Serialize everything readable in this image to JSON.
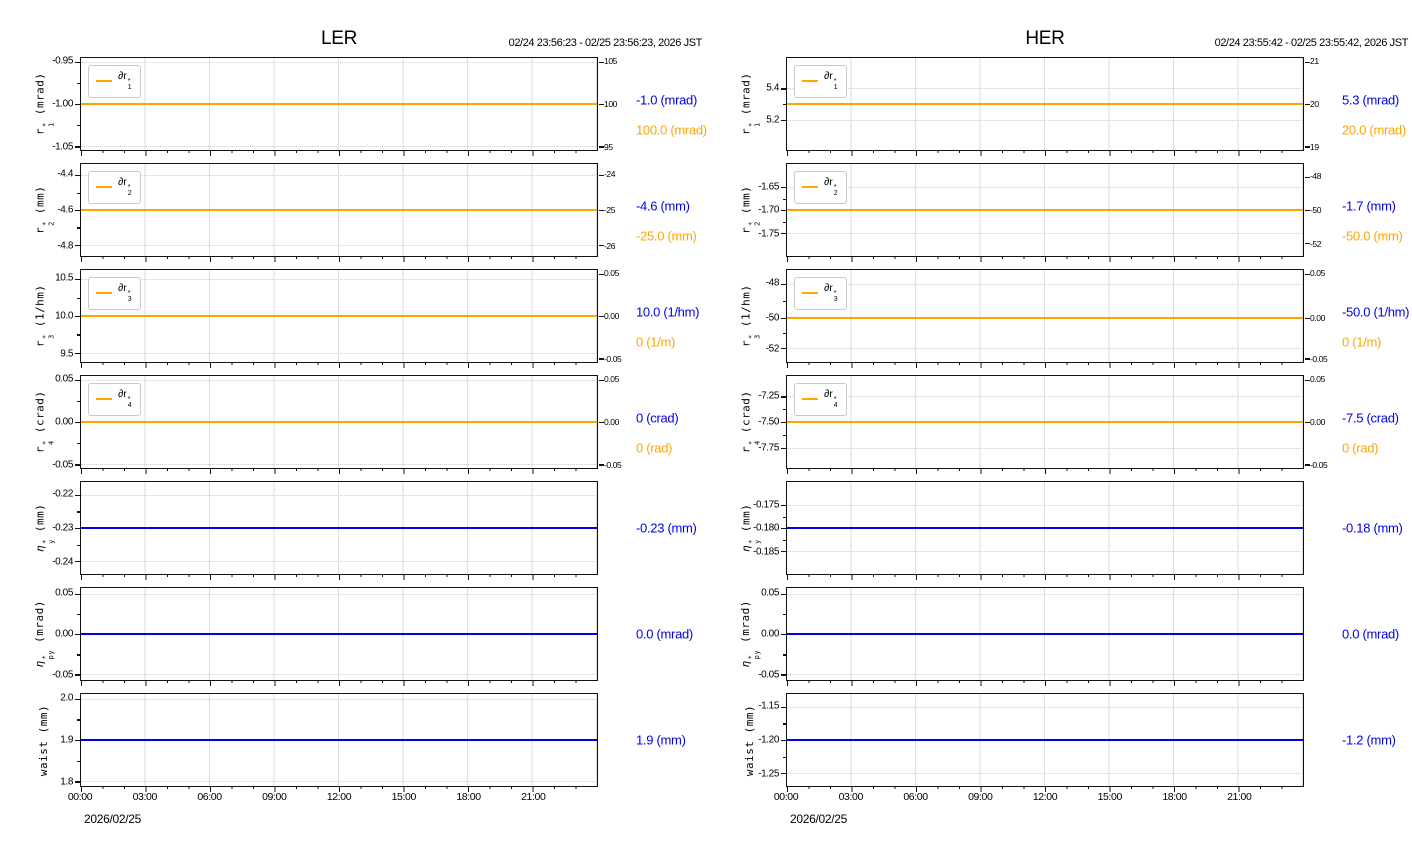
{
  "colors": {
    "blue": "#0000EE",
    "orange": "#FFA500",
    "grid_vertical": "#dedede",
    "grid_horizontal": "#cfcfcf",
    "frame": "#111111"
  },
  "chart_data": [
    {
      "type": "line",
      "title": "LER",
      "time_range": "02/24 23:56:23 - 02/25 23:56:23, 2026 JST",
      "x_axis": {
        "date": "2026/02/25",
        "tick_labels": [
          "00:00",
          "03:00",
          "06:00",
          "09:00",
          "12:00",
          "15:00",
          "18:00",
          "21:00"
        ],
        "span_hours": 24,
        "major_tick_hours": 3,
        "minor_tick_hours": 1,
        "grid": "vertical dotted lines at major ticks"
      },
      "subplots": [
        {
          "ylabel": {
            "sym": "r",
            "sub": "1",
            "sup": "*",
            "unit": "(mrad)",
            "italic": false
          },
          "left_ticks": [
            {
              "label": "-0.95",
              "pos": 4
            },
            {
              "label": "-1.00",
              "pos": 50
            },
            {
              "label": "-1.05",
              "pos": 96
            }
          ],
          "right_ticks": [
            {
              "label": "105",
              "pos": 4
            },
            {
              "label": "100",
              "pos": 50
            },
            {
              "label": "95",
              "pos": 96
            }
          ],
          "legend": {
            "sym": "∂r",
            "sub": "1",
            "sup": "*"
          },
          "line": {
            "color": "orange",
            "pos": 50
          },
          "series": [
            {
              "name": "r1*",
              "axis": "left",
              "constant_value": -1.0,
              "unit": "mrad",
              "label": "-1.0 (mrad)",
              "color": "blue"
            },
            {
              "name": "∂r1*",
              "axis": "right",
              "constant_value": 100.0,
              "unit": "mrad",
              "label": "100.0 (mrad)",
              "color": "orange"
            }
          ]
        },
        {
          "ylabel": {
            "sym": "r",
            "sub": "2",
            "sup": "*",
            "unit": "(mm)",
            "italic": false
          },
          "left_ticks": [
            {
              "label": "-4.4",
              "pos": 12
            },
            {
              "label": "-4.6",
              "pos": 50
            },
            {
              "label": "-4.8",
              "pos": 88
            }
          ],
          "right_ticks": [
            {
              "label": "-24",
              "pos": 12
            },
            {
              "label": "-25",
              "pos": 50
            },
            {
              "label": "-26",
              "pos": 88
            }
          ],
          "legend": {
            "sym": "∂r",
            "sub": "2",
            "sup": "*"
          },
          "line": {
            "color": "orange",
            "pos": 50
          },
          "series": [
            {
              "name": "r2*",
              "axis": "left",
              "constant_value": -4.6,
              "unit": "mm",
              "label": "-4.6 (mm)",
              "color": "blue"
            },
            {
              "name": "∂r2*",
              "axis": "right",
              "constant_value": -25.0,
              "unit": "mm",
              "label": "-25.0 (mm)",
              "color": "orange"
            }
          ]
        },
        {
          "ylabel": {
            "sym": "r",
            "sub": "3",
            "sup": "*",
            "unit": "(1/hm)",
            "italic": false
          },
          "left_ticks": [
            {
              "label": "10.5",
              "pos": 10
            },
            {
              "label": "10.0",
              "pos": 50
            },
            {
              "label": "9.5",
              "pos": 90
            }
          ],
          "right_ticks": [
            {
              "label": "0.05",
              "pos": 4
            },
            {
              "label": "0.00",
              "pos": 50
            },
            {
              "label": "-0.05",
              "pos": 96
            }
          ],
          "legend": {
            "sym": "∂r",
            "sub": "3",
            "sup": "*"
          },
          "line": {
            "color": "orange",
            "pos": 50
          },
          "series": [
            {
              "name": "r3*",
              "axis": "left",
              "constant_value": 10.0,
              "unit": "1/hm",
              "label": "10.0 (1/hm)",
              "color": "blue"
            },
            {
              "name": "∂r3*",
              "axis": "right",
              "constant_value": 0,
              "unit": "1/m",
              "label": "0 (1/m)",
              "color": "orange"
            }
          ]
        },
        {
          "ylabel": {
            "sym": "r",
            "sub": "4",
            "sup": "*",
            "unit": "(crad)",
            "italic": false
          },
          "left_ticks": [
            {
              "label": "0.05",
              "pos": 4
            },
            {
              "label": "0.00",
              "pos": 50
            },
            {
              "label": "-0.05",
              "pos": 96
            }
          ],
          "right_ticks": [
            {
              "label": "0.05",
              "pos": 4
            },
            {
              "label": "0.00",
              "pos": 50
            },
            {
              "label": "-0.05",
              "pos": 96
            }
          ],
          "legend": {
            "sym": "∂r",
            "sub": "4",
            "sup": "*"
          },
          "line": {
            "color": "orange",
            "pos": 50
          },
          "series": [
            {
              "name": "r4*",
              "axis": "left",
              "constant_value": 0,
              "unit": "crad",
              "label": "0 (crad)",
              "color": "blue"
            },
            {
              "name": "∂r4*",
              "axis": "right",
              "constant_value": 0,
              "unit": "rad",
              "label": "0 (rad)",
              "color": "orange"
            }
          ]
        },
        {
          "ylabel": {
            "sym": "η",
            "sub": "y",
            "sup": "*",
            "unit": "(mm)",
            "italic": true
          },
          "left_ticks": [
            {
              "label": "-0.22",
              "pos": 14
            },
            {
              "label": "-0.23",
              "pos": 50
            },
            {
              "label": "-0.24",
              "pos": 86
            }
          ],
          "line": {
            "color": "blue",
            "pos": 50
          },
          "series": [
            {
              "name": "ηy*",
              "axis": "left",
              "constant_value": -0.23,
              "unit": "mm",
              "label": "-0.23 (mm)",
              "color": "blue"
            }
          ]
        },
        {
          "ylabel": {
            "sym": "η",
            "sub": "py",
            "sup": "*",
            "unit": "(mrad)",
            "italic": true
          },
          "left_ticks": [
            {
              "label": "0.05",
              "pos": 6
            },
            {
              "label": "0.00",
              "pos": 50
            },
            {
              "label": "-0.05",
              "pos": 94
            }
          ],
          "line": {
            "color": "blue",
            "pos": 50
          },
          "series": [
            {
              "name": "ηpy*",
              "axis": "left",
              "constant_value": 0.0,
              "unit": "mrad",
              "label": "0.0 (mrad)",
              "color": "blue"
            }
          ]
        },
        {
          "ylabel": {
            "sym": "waist",
            "unit": "(mm)",
            "italic": false
          },
          "left_ticks": [
            {
              "label": "2.0",
              "pos": 5
            },
            {
              "label": "1.9",
              "pos": 50
            },
            {
              "label": "1.8",
              "pos": 95
            }
          ],
          "line": {
            "color": "blue",
            "pos": 50
          },
          "series": [
            {
              "name": "waist",
              "axis": "left",
              "constant_value": 1.9,
              "unit": "mm",
              "label": "1.9 (mm)",
              "color": "blue"
            }
          ]
        }
      ]
    },
    {
      "type": "line",
      "title": "HER",
      "time_range": "02/24 23:55:42 - 02/25 23:55:42, 2026 JST",
      "x_axis": {
        "date": "2026/02/25",
        "tick_labels": [
          "00:00",
          "03:00",
          "06:00",
          "09:00",
          "12:00",
          "15:00",
          "18:00",
          "21:00"
        ],
        "span_hours": 24,
        "major_tick_hours": 3,
        "minor_tick_hours": 1,
        "grid": "vertical dotted lines at major ticks"
      },
      "subplots": [
        {
          "ylabel": {
            "sym": "r",
            "sub": "1",
            "sup": "*",
            "unit": "(mrad)",
            "italic": false
          },
          "left_ticks": [
            {
              "label": "5.4",
              "pos": 33
            },
            {
              "label": "5.2",
              "pos": 67
            }
          ],
          "right_ticks": [
            {
              "label": "21",
              "pos": 4
            },
            {
              "label": "20",
              "pos": 50
            },
            {
              "label": "19",
              "pos": 96
            }
          ],
          "legend": {
            "sym": "∂r",
            "sub": "1",
            "sup": "*"
          },
          "line": {
            "color": "orange",
            "pos": 50
          },
          "series": [
            {
              "name": "r1*",
              "axis": "left",
              "constant_value": 5.3,
              "unit": "mrad",
              "label": "5.3 (mrad)",
              "color": "blue"
            },
            {
              "name": "∂r1*",
              "axis": "right",
              "constant_value": 20.0,
              "unit": "mrad",
              "label": "20.0 (mrad)",
              "color": "orange"
            }
          ]
        },
        {
          "ylabel": {
            "sym": "r",
            "sub": "2",
            "sup": "*",
            "unit": "(mm)",
            "italic": false
          },
          "left_ticks": [
            {
              "label": "-1.65",
              "pos": 25
            },
            {
              "label": "-1.70",
              "pos": 50
            },
            {
              "label": "-1.75",
              "pos": 75
            }
          ],
          "right_ticks": [
            {
              "label": "-48",
              "pos": 14
            },
            {
              "label": "-50",
              "pos": 50
            },
            {
              "label": "-52",
              "pos": 86
            }
          ],
          "legend": {
            "sym": "∂r",
            "sub": "2",
            "sup": "*"
          },
          "line": {
            "color": "orange",
            "pos": 50
          },
          "series": [
            {
              "name": "r2*",
              "axis": "left",
              "constant_value": -1.7,
              "unit": "mm",
              "label": "-1.7 (mm)",
              "color": "blue"
            },
            {
              "name": "∂r2*",
              "axis": "right",
              "constant_value": -50.0,
              "unit": "mm",
              "label": "-50.0 (mm)",
              "color": "orange"
            }
          ]
        },
        {
          "ylabel": {
            "sym": "r",
            "sub": "3",
            "sup": "*",
            "unit": "(1/hm)",
            "italic": false
          },
          "left_ticks": [
            {
              "label": "-48",
              "pos": 15
            },
            {
              "label": "-50",
              "pos": 52
            },
            {
              "label": "-52",
              "pos": 85
            }
          ],
          "right_ticks": [
            {
              "label": "0.05",
              "pos": 4
            },
            {
              "label": "0.00",
              "pos": 52
            },
            {
              "label": "-0.05",
              "pos": 96
            }
          ],
          "legend": {
            "sym": "∂r",
            "sub": "3",
            "sup": "*"
          },
          "line": {
            "color": "orange",
            "pos": 52
          },
          "series": [
            {
              "name": "r3*",
              "axis": "left",
              "constant_value": -50.0,
              "unit": "1/hm",
              "label": "-50.0 (1/hm)",
              "color": "blue"
            },
            {
              "name": "∂r3*",
              "axis": "right",
              "constant_value": 0,
              "unit": "1/m",
              "label": "0 (1/m)",
              "color": "orange"
            }
          ]
        },
        {
          "ylabel": {
            "sym": "r",
            "sub": "4",
            "sup": "*",
            "unit": "(crad)",
            "italic": false
          },
          "left_ticks": [
            {
              "label": "-7.25",
              "pos": 22
            },
            {
              "label": "-7.50",
              "pos": 50
            },
            {
              "label": "-7.75",
              "pos": 78
            }
          ],
          "right_ticks": [
            {
              "label": "0.05",
              "pos": 4
            },
            {
              "label": "0.00",
              "pos": 50
            },
            {
              "label": "-0.05",
              "pos": 96
            }
          ],
          "legend": {
            "sym": "∂r",
            "sub": "4",
            "sup": "*"
          },
          "line": {
            "color": "orange",
            "pos": 50
          },
          "series": [
            {
              "name": "r4*",
              "axis": "left",
              "constant_value": -7.5,
              "unit": "crad",
              "label": "-7.5 (crad)",
              "color": "blue"
            },
            {
              "name": "∂r4*",
              "axis": "right",
              "constant_value": 0,
              "unit": "rad",
              "label": "0 (rad)",
              "color": "orange"
            }
          ]
        },
        {
          "ylabel": {
            "sym": "η",
            "sub": "y",
            "sup": "*",
            "unit": "(mm)",
            "italic": true
          },
          "left_ticks": [
            {
              "label": "-0.175",
              "pos": 25
            },
            {
              "label": "-0.180",
              "pos": 50
            },
            {
              "label": "-0.185",
              "pos": 75
            }
          ],
          "line": {
            "color": "blue",
            "pos": 50
          },
          "series": [
            {
              "name": "ηy*",
              "axis": "left",
              "constant_value": -0.18,
              "unit": "mm",
              "label": "-0.18 (mm)",
              "color": "blue"
            }
          ]
        },
        {
          "ylabel": {
            "sym": "η",
            "sub": "py",
            "sup": "*",
            "unit": "(mrad)",
            "italic": true
          },
          "left_ticks": [
            {
              "label": "0.05",
              "pos": 6
            },
            {
              "label": "0.00",
              "pos": 50
            },
            {
              "label": "-0.05",
              "pos": 94
            }
          ],
          "line": {
            "color": "blue",
            "pos": 50
          },
          "series": [
            {
              "name": "ηpy*",
              "axis": "left",
              "constant_value": 0.0,
              "unit": "mrad",
              "label": "0.0 (mrad)",
              "color": "blue"
            }
          ]
        },
        {
          "ylabel": {
            "sym": "waist",
            "unit": "(mm)",
            "italic": false
          },
          "left_ticks": [
            {
              "label": "-1.15",
              "pos": 14
            },
            {
              "label": "-1.20",
              "pos": 50
            },
            {
              "label": "-1.25",
              "pos": 86
            }
          ],
          "line": {
            "color": "blue",
            "pos": 50
          },
          "series": [
            {
              "name": "waist",
              "axis": "left",
              "constant_value": -1.2,
              "unit": "mm",
              "label": "-1.2 (mm)",
              "color": "blue"
            }
          ]
        }
      ]
    }
  ]
}
